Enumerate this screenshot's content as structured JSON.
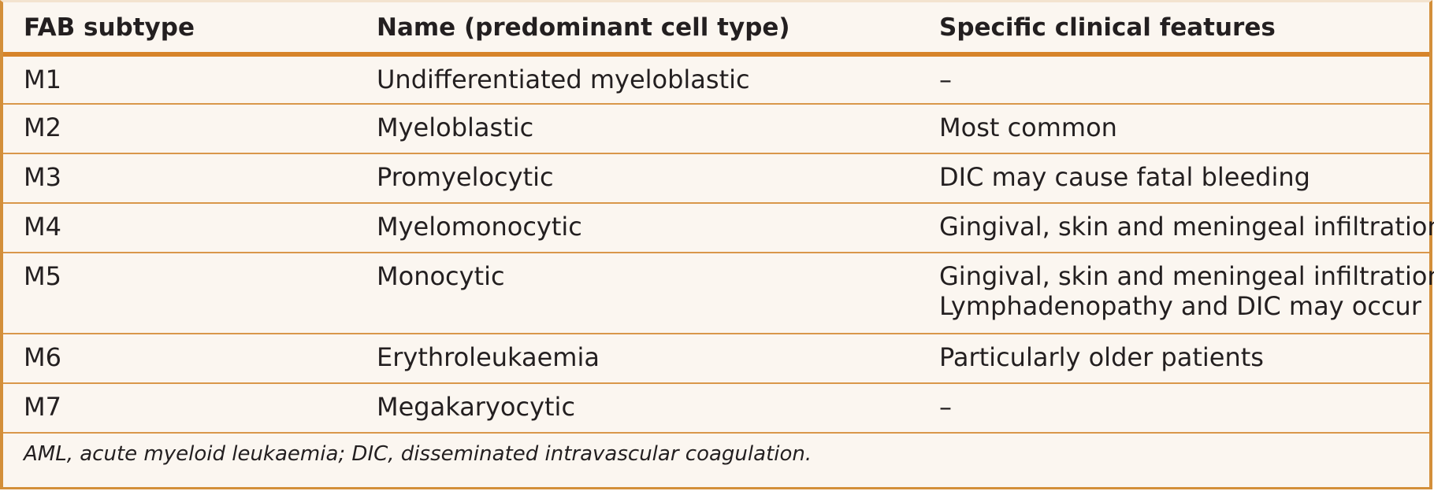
{
  "table": {
    "headers": [
      "FAB subtype",
      "Name (predominant cell type)",
      "Specific clinical features"
    ],
    "rows": [
      {
        "subtype": "M1",
        "name": "Undifferentiated myeloblastic",
        "features": [
          "–"
        ]
      },
      {
        "subtype": "M2",
        "name": "Myeloblastic",
        "features": [
          "Most common"
        ]
      },
      {
        "subtype": "M3",
        "name": "Promyelocytic",
        "features": [
          "DIC may cause fatal bleeding"
        ]
      },
      {
        "subtype": "M4",
        "name": "Myelomonocytic",
        "features": [
          "Gingival, skin and meningeal infiltration"
        ]
      },
      {
        "subtype": "M5",
        "name": "Monocytic",
        "features": [
          "Gingival, skin and meningeal infiltration",
          "Lymphadenopathy and DIC may occur"
        ]
      },
      {
        "subtype": "M6",
        "name": "Erythroleukaemia",
        "features": [
          "Particularly older patients"
        ]
      },
      {
        "subtype": "M7",
        "name": "Megakaryocytic",
        "features": [
          "–"
        ]
      }
    ],
    "footnote": "AML, acute myeloid leukaemia; DIC, disseminated intravascular coagulation."
  },
  "colors": {
    "border": "#d38f3a",
    "header_rule": "#d7842a",
    "row_rule": "#d9974a",
    "background": "#fbf6f0",
    "text": "#231f20"
  }
}
